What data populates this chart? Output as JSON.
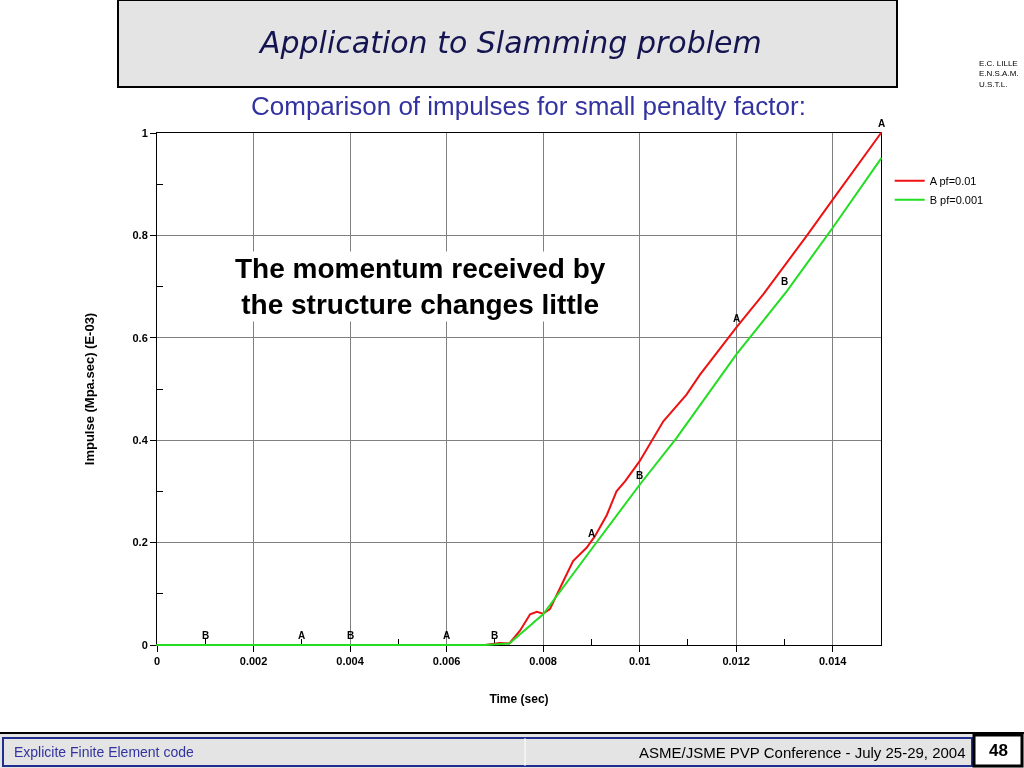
{
  "chart_data": {
    "type": "line",
    "title": "Application to Slamming problem",
    "subtitle": "Comparison of impulses for small penalty factor:",
    "xlabel": "Time (sec)",
    "ylabel": "Impulse (Mpa.sec) (E-03)",
    "xlim": [
      0,
      0.015
    ],
    "xticks": [
      0,
      {
        "value": 0.001,
        "label": null
      },
      0.002,
      {
        "value": 0.003,
        "label": null
      },
      0.004,
      {
        "value": 0.005,
        "label": null
      },
      0.006,
      {
        "value": 0.007,
        "label": null
      },
      0.008,
      {
        "value": 0.009,
        "label": null
      },
      0.01,
      {
        "value": 0.011,
        "label": null
      },
      0.012,
      {
        "value": 0.013,
        "label": null
      },
      0.014
    ],
    "ylim": [
      0,
      1
    ],
    "yticks": [
      0,
      {
        "value": 0.1,
        "label": null
      },
      0.2,
      {
        "value": 0.3,
        "label": null
      },
      0.4,
      {
        "value": 0.5,
        "label": null
      },
      0.6,
      {
        "value": 0.7,
        "label": null
      },
      0.8,
      {
        "value": 0.9,
        "label": null
      },
      1
    ],
    "grid": true,
    "legend": "top right",
    "series": [
      {
        "name": "A pf=0.01",
        "color": "#ee1111",
        "x": [
          0,
          0.0068,
          0.0071,
          0.0073,
          0.00752,
          0.00773,
          0.00787,
          0.008,
          0.00814,
          0.00842,
          0.00862,
          0.0089,
          0.00907,
          0.00932,
          0.00952,
          0.0097,
          0.01,
          0.01049,
          0.01097,
          0.01125,
          0.012,
          0.01256,
          0.01346,
          0.014,
          0.015
        ],
        "values": [
          0,
          0,
          0.004,
          0.003,
          0.028,
          0.06,
          0.065,
          0.061,
          0.07,
          0.125,
          0.164,
          0.19,
          0.212,
          0.254,
          0.3,
          0.32,
          0.359,
          0.437,
          0.489,
          0.528,
          0.62,
          0.685,
          0.799,
          0.87,
          1.0
        ]
      },
      {
        "name": "B pf=0.001",
        "color": "#22dd22",
        "x": [
          0,
          0.0068,
          0.0073,
          0.008,
          0.009,
          0.01,
          0.01077,
          0.012,
          0.01305,
          0.014,
          0.015
        ],
        "values": [
          0,
          0,
          0.003,
          0.06,
          0.187,
          0.313,
          0.405,
          0.567,
          0.691,
          0.815,
          0.95
        ]
      }
    ],
    "annotations": [
      "The momentum received by\nthe structure changes little",
      "E.C. LILLE\nE.N.S.A.M.\nU.S.T.L.",
      "Explicite Finite Element code",
      "ASME/JSME PVP Conference - July 25-29, 2004",
      "48",
      {
        "text": "B",
        "x": 0.001,
        "y": 0
      },
      {
        "text": "A",
        "x": 0.003,
        "y": 0
      },
      {
        "text": "B",
        "x": 0.004,
        "y": 0
      },
      {
        "text": "A",
        "x": 0.006,
        "y": 0
      },
      {
        "text": "B",
        "x": 0.007,
        "y": 0
      },
      {
        "text": "A",
        "x": 0.009,
        "y": 0.2
      },
      {
        "text": "B",
        "x": 0.01,
        "y": 0.313
      },
      {
        "text": "A",
        "x": 0.012,
        "y": 0.62
      },
      {
        "text": "B",
        "x": 0.013,
        "y": 0.691
      },
      {
        "text": "A",
        "x": 0.015,
        "y": 1.0
      }
    ]
  }
}
